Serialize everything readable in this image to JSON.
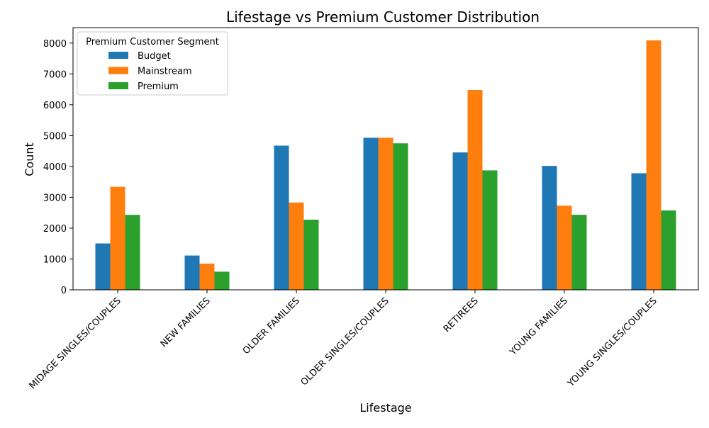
{
  "chart_data": {
    "type": "bar",
    "title": "Lifestage vs Premium Customer Distribution",
    "xlabel": "Lifestage",
    "ylabel": "Count",
    "ylim": [
      0,
      8500
    ],
    "yticks": [
      0,
      1000,
      2000,
      3000,
      4000,
      5000,
      6000,
      7000,
      8000
    ],
    "categories": [
      "MIDAGE SINGLES/COUPLES",
      "NEW FAMILIES",
      "OLDER FAMILIES",
      "OLDER SINGLES/COUPLES",
      "RETIREES",
      "YOUNG FAMILIES",
      "YOUNG SINGLES/COUPLES"
    ],
    "series": [
      {
        "name": "Budget",
        "color": "#1f77b4",
        "values": [
          1504,
          1112,
          4675,
          4929,
          4454,
          4017,
          3779
        ]
      },
      {
        "name": "Mainstream",
        "color": "#ff7f0e",
        "values": [
          3340,
          849,
          2831,
          4930,
          6479,
          2728,
          8088
        ]
      },
      {
        "name": "Premium",
        "color": "#2ca02c",
        "values": [
          2431,
          588,
          2274,
          4750,
          3872,
          2433,
          2574
        ]
      }
    ],
    "legend": {
      "title": "Premium Customer Segment",
      "position": "top-left"
    },
    "grid": false
  }
}
